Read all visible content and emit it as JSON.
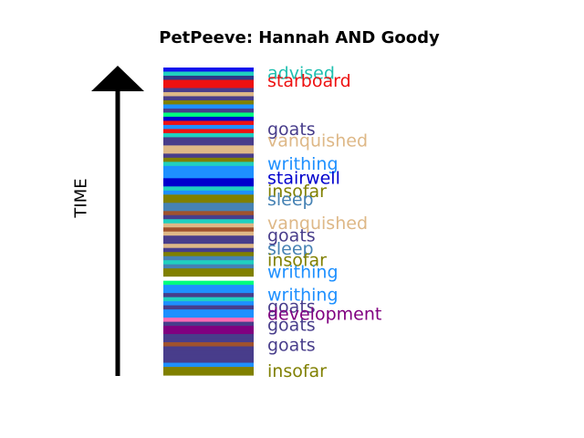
{
  "chart_data": {
    "type": "bar",
    "title": "PetPeeve: Hannah AND Goody",
    "axis_label": "TIME",
    "grid": false,
    "legend": "none",
    "segments": [
      {
        "color": "#1010ee"
      },
      {
        "color": "#20d0c0"
      },
      {
        "color": "#2e3a8a"
      },
      {
        "color": "#ee1111"
      },
      {
        "color": "#ee1111"
      },
      {
        "color": "#483d8b"
      },
      {
        "color": "#deb887"
      },
      {
        "color": "#483d8b"
      },
      {
        "color": "#808000"
      },
      {
        "color": "#1e90ff"
      },
      {
        "color": "#483d8b"
      },
      {
        "color": "#00ff7f"
      },
      {
        "color": "#0000cd"
      },
      {
        "color": "#ee1111"
      },
      {
        "color": "#1e90ff"
      },
      {
        "color": "#ee1111"
      },
      {
        "color": "#20d0c0"
      },
      {
        "color": "#483d8b"
      },
      {
        "color": "#483d8b"
      },
      {
        "color": "#deb887"
      },
      {
        "color": "#deb887"
      },
      {
        "color": "#483d8b"
      },
      {
        "color": "#808000"
      },
      {
        "color": "#20d0c0"
      },
      {
        "color": "#1e90ff"
      },
      {
        "color": "#1e90ff"
      },
      {
        "color": "#1e90ff"
      },
      {
        "color": "#0000cd"
      },
      {
        "color": "#0000cd"
      },
      {
        "color": "#20d0c0"
      },
      {
        "color": "#1e90ff"
      },
      {
        "color": "#808000"
      },
      {
        "color": "#808000"
      },
      {
        "color": "#4682b4"
      },
      {
        "color": "#4682b4"
      },
      {
        "color": "#a0522d"
      },
      {
        "color": "#483d8b"
      },
      {
        "color": "#20d0c0"
      },
      {
        "color": "#deb887"
      },
      {
        "color": "#a0522d"
      },
      {
        "color": "#deb887"
      },
      {
        "color": "#483d8b"
      },
      {
        "color": "#483d8b"
      },
      {
        "color": "#deb887"
      },
      {
        "color": "#483d8b"
      },
      {
        "color": "#808000"
      },
      {
        "color": "#4682b4"
      },
      {
        "color": "#20d0c0"
      },
      {
        "color": "#4682b4"
      },
      {
        "color": "#808000"
      },
      {
        "color": "#808000"
      },
      {
        "color": "#ffffff"
      },
      {
        "color": "#00ff7f"
      },
      {
        "color": "#1e90ff"
      },
      {
        "color": "#1e90ff"
      },
      {
        "color": "#483d8b"
      },
      {
        "color": "#20d0c0"
      },
      {
        "color": "#1e90ff"
      },
      {
        "color": "#483d8b"
      },
      {
        "color": "#1e90ff"
      },
      {
        "color": "#1e90ff"
      },
      {
        "color": "#ff69b4"
      },
      {
        "color": "#483d8b"
      },
      {
        "color": "#800080"
      },
      {
        "color": "#800080"
      },
      {
        "color": "#483d8b"
      },
      {
        "color": "#483d8b"
      },
      {
        "color": "#a0522d"
      },
      {
        "color": "#483d8b"
      },
      {
        "color": "#483d8b"
      },
      {
        "color": "#483d8b"
      },
      {
        "color": "#483d8b"
      },
      {
        "color": "#1e90ff"
      },
      {
        "color": "#808000"
      },
      {
        "color": "#808000"
      }
    ],
    "labels": [
      {
        "text": "advised",
        "color": "#20c0b0",
        "position": 0.02
      },
      {
        "text": "starboard",
        "color": "#ee1111",
        "position": 0.045
      },
      {
        "text": "goats",
        "color": "#483d8b",
        "position": 0.202
      },
      {
        "text": "vanquished",
        "color": "#deb887",
        "position": 0.239
      },
      {
        "text": "writhing",
        "color": "#1e90ff",
        "position": 0.314
      },
      {
        "text": "stairwell",
        "color": "#0000cd",
        "position": 0.361
      },
      {
        "text": "insofar",
        "color": "#808000",
        "position": 0.403
      },
      {
        "text": "sleep",
        "color": "#4682b4",
        "position": 0.43
      },
      {
        "text": "vanquished",
        "color": "#deb887",
        "position": 0.507
      },
      {
        "text": "goats",
        "color": "#483d8b",
        "position": 0.548
      },
      {
        "text": "sleep",
        "color": "#4682b4",
        "position": 0.59
      },
      {
        "text": "insofar",
        "color": "#808000",
        "position": 0.627
      },
      {
        "text": "writhing",
        "color": "#1e90ff",
        "position": 0.666
      },
      {
        "text": "writhing",
        "color": "#1e90ff",
        "position": 0.74
      },
      {
        "text": "goats",
        "color": "#483d8b",
        "position": 0.779
      },
      {
        "text": "development",
        "color": "#800080",
        "position": 0.803
      },
      {
        "text": "goats",
        "color": "#483d8b",
        "position": 0.839
      },
      {
        "text": "goats",
        "color": "#483d8b",
        "position": 0.904
      },
      {
        "text": "insofar",
        "color": "#808000",
        "position": 0.988
      }
    ]
  }
}
